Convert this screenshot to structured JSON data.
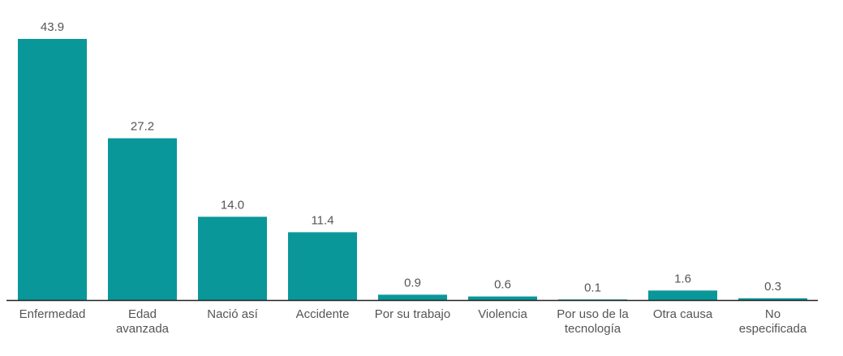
{
  "chart_data": {
    "type": "bar",
    "categories": [
      "Enfermedad",
      "Edad\navanzada",
      "Nació así",
      "Accidente",
      "Por su trabajo",
      "Violencia",
      "Por uso de la\ntecnología",
      "Otra causa",
      "No\nespecificada"
    ],
    "values": [
      43.9,
      27.2,
      14.0,
      11.4,
      0.9,
      0.6,
      0.1,
      1.6,
      0.3
    ],
    "value_labels": [
      "43.9",
      "27.2",
      "14.0",
      "11.4",
      "0.9",
      "0.6",
      "0.1",
      "1.6",
      "0.3"
    ],
    "color": "#0a979a"
  }
}
